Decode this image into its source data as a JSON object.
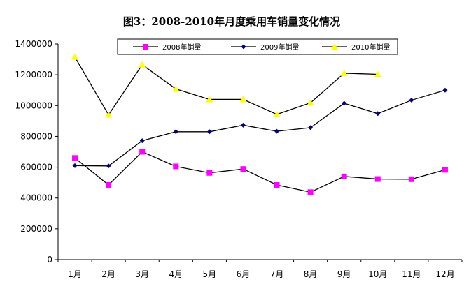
{
  "chart_data": {
    "type": "line",
    "title": "图3：2008-2010年月度乘用车销量变化情况",
    "categories": [
      "1月",
      "2月",
      "3月",
      "4月",
      "5月",
      "6月",
      "7月",
      "8月",
      "9月",
      "10月",
      "11月",
      "12月"
    ],
    "ylim": [
      0,
      1400000
    ],
    "yticks": [
      0,
      200000,
      400000,
      600000,
      800000,
      1000000,
      1200000,
      1400000
    ],
    "xlabel": "",
    "ylabel": "",
    "grid": false,
    "legend_position": "top",
    "series": [
      {
        "name": "2008年销量",
        "color": "#ff00ff",
        "marker": "square",
        "values": [
          660000,
          485000,
          700000,
          605000,
          563000,
          588000,
          485000,
          438000,
          540000,
          523000,
          522000,
          583000
        ]
      },
      {
        "name": "2009年销量",
        "color": "#000080",
        "marker": "diamond",
        "values": [
          610000,
          608000,
          772000,
          830000,
          830000,
          873000,
          833000,
          857000,
          1015000,
          948000,
          1035000,
          1100000
        ]
      },
      {
        "name": "2010年销量",
        "color": "#ffff00",
        "marker": "triangle",
        "values": [
          1315000,
          940000,
          1265000,
          1108000,
          1040000,
          1040000,
          943000,
          1018000,
          1210000,
          1203000,
          null,
          null
        ]
      }
    ]
  }
}
